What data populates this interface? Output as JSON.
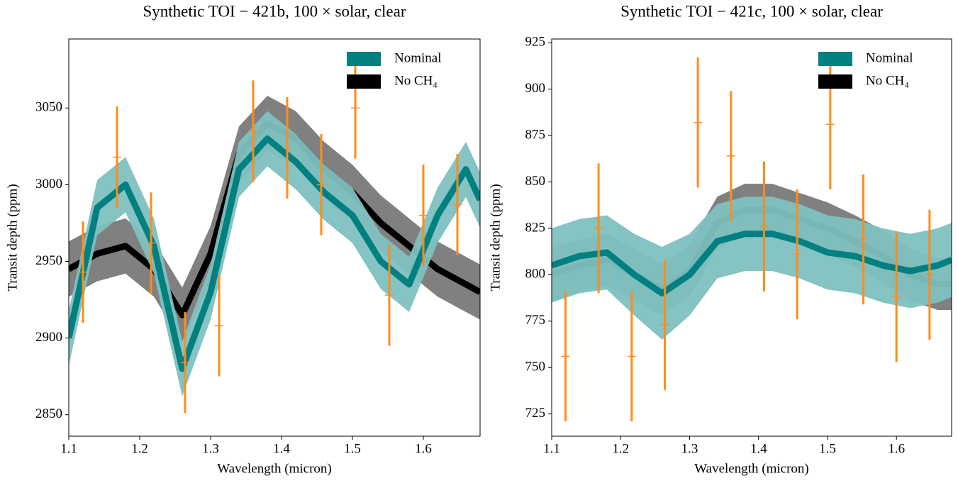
{
  "chart_data": [
    {
      "type": "band",
      "title": "Synthetic TOI − 421b,  100 × solar, clear",
      "x_label": "Wavelength (micron)",
      "y_label": "Transit depth (ppm)",
      "xlim": [
        1.1,
        1.68
      ],
      "xticks": [
        1.1,
        1.2,
        1.3,
        1.4,
        1.5,
        1.6
      ],
      "ylim": [
        2836,
        3095
      ],
      "yticks": [
        2850,
        2900,
        2950,
        3000,
        3050
      ],
      "x": [
        1.1,
        1.14,
        1.18,
        1.22,
        1.26,
        1.3,
        1.34,
        1.38,
        1.42,
        1.46,
        1.5,
        1.54,
        1.58,
        1.62,
        1.66,
        1.68
      ],
      "series": [
        {
          "name": "No CH₄",
          "color": "#000000",
          "band_color": "#808080",
          "values": [
            2945,
            2955,
            2960,
            2945,
            2915,
            2955,
            3020,
            3040,
            3030,
            3010,
            2995,
            2975,
            2960,
            2945,
            2935,
            2930
          ],
          "lower": [
            2927,
            2937,
            2942,
            2927,
            2897,
            2937,
            3002,
            3022,
            3012,
            2992,
            2977,
            2957,
            2942,
            2927,
            2917,
            2912
          ],
          "upper": [
            2963,
            2973,
            2978,
            2963,
            2933,
            2973,
            3038,
            3058,
            3048,
            3028,
            3013,
            2993,
            2978,
            2963,
            2953,
            2948
          ]
        },
        {
          "name": "Nominal",
          "color": "#008080",
          "band_color": "#7fc0c0",
          "values": [
            2900,
            2985,
            3000,
            2960,
            2880,
            2930,
            3010,
            3030,
            3015,
            2995,
            2980,
            2950,
            2935,
            2980,
            3010,
            2990
          ],
          "lower": [
            2882,
            2967,
            2982,
            2942,
            2862,
            2912,
            2992,
            3012,
            2997,
            2977,
            2962,
            2932,
            2917,
            2962,
            2992,
            2972
          ],
          "upper": [
            2918,
            3003,
            3018,
            2978,
            2898,
            2948,
            3028,
            3048,
            3033,
            3013,
            2998,
            2968,
            2953,
            2998,
            3028,
            3008
          ]
        }
      ],
      "observations": {
        "color": "#ff8c1a",
        "x": [
          1.12,
          1.168,
          1.216,
          1.264,
          1.312,
          1.36,
          1.408,
          1.456,
          1.504,
          1.552,
          1.6,
          1.648
        ],
        "values": [
          2943,
          3018,
          2962,
          2884,
          2908,
          3035,
          3024,
          3000,
          3050,
          2928,
          2980,
          2987
        ],
        "errors": [
          33,
          33,
          33,
          33,
          33,
          33,
          33,
          33,
          33,
          33,
          33,
          33
        ]
      }
    },
    {
      "type": "band",
      "title": "Synthetic TOI − 421c,  100 × solar, clear",
      "x_label": "Wavelength (micron)",
      "y_label": "Transit depth (ppm)",
      "xlim": [
        1.1,
        1.68
      ],
      "xticks": [
        1.1,
        1.2,
        1.3,
        1.4,
        1.5,
        1.6
      ],
      "ylim": [
        713,
        927
      ],
      "yticks": [
        725,
        750,
        775,
        800,
        825,
        850,
        875,
        900,
        925
      ],
      "x": [
        1.1,
        1.14,
        1.18,
        1.22,
        1.26,
        1.3,
        1.34,
        1.38,
        1.42,
        1.46,
        1.5,
        1.54,
        1.58,
        1.62,
        1.66,
        1.68
      ],
      "series": [
        {
          "name": "No CH₄",
          "color": "#000000",
          "band_color": "#808080",
          "values": [
            800,
            805,
            808,
            800,
            792,
            802,
            828,
            835,
            835,
            830,
            825,
            818,
            810,
            800,
            795,
            795
          ],
          "lower": [
            786,
            791,
            794,
            786,
            778,
            788,
            814,
            821,
            821,
            816,
            811,
            804,
            796,
            786,
            781,
            781
          ],
          "upper": [
            814,
            819,
            822,
            814,
            806,
            816,
            842,
            849,
            849,
            844,
            839,
            832,
            824,
            814,
            809,
            809
          ]
        },
        {
          "name": "Nominal",
          "color": "#008080",
          "band_color": "#7fc0c0",
          "values": [
            805,
            810,
            812,
            800,
            790,
            800,
            818,
            822,
            822,
            818,
            812,
            810,
            805,
            802,
            805,
            808
          ],
          "lower": [
            785,
            790,
            792,
            778,
            765,
            778,
            798,
            802,
            802,
            798,
            792,
            790,
            785,
            782,
            785,
            788
          ],
          "upper": [
            825,
            830,
            832,
            822,
            815,
            822,
            838,
            842,
            842,
            838,
            832,
            830,
            825,
            822,
            825,
            828
          ]
        }
      ],
      "observations": {
        "color": "#ff8c1a",
        "x": [
          1.12,
          1.168,
          1.216,
          1.264,
          1.312,
          1.36,
          1.408,
          1.456,
          1.504,
          1.552,
          1.6,
          1.648
        ],
        "values": [
          756,
          825,
          756,
          773,
          882,
          864,
          826,
          811,
          881,
          819,
          788,
          800
        ],
        "errors": [
          35,
          35,
          35,
          35,
          35,
          35,
          35,
          35,
          35,
          35,
          35,
          35
        ]
      }
    }
  ]
}
